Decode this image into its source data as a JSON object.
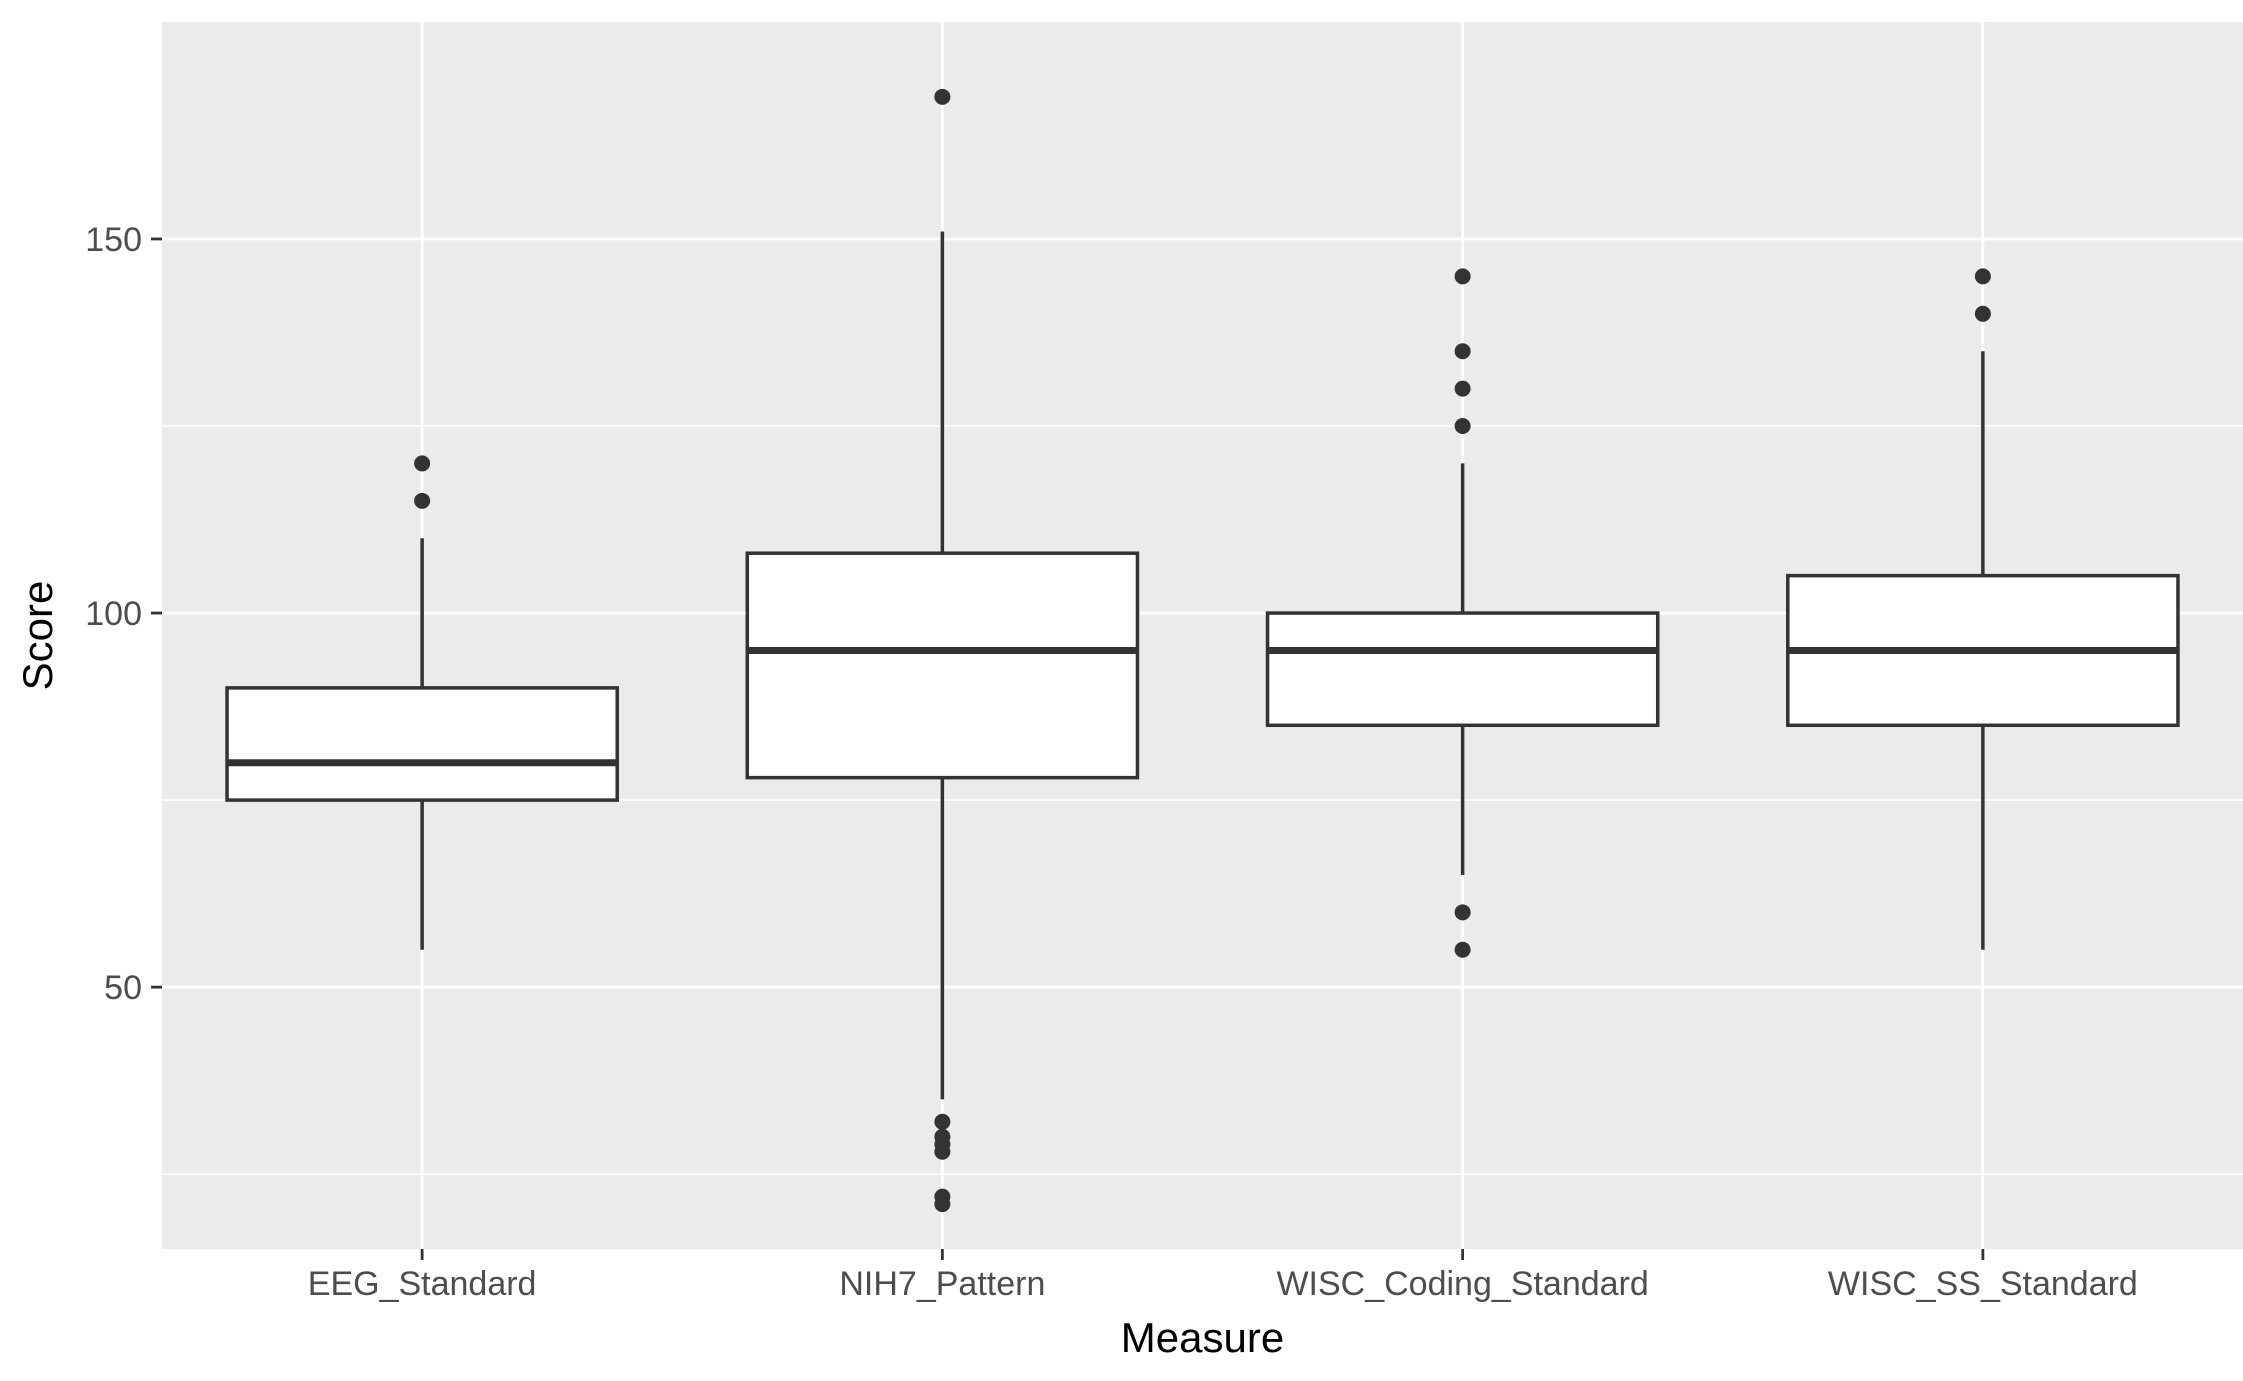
{
  "chart_data": {
    "type": "boxplot",
    "title": "",
    "xlabel": "Measure",
    "ylabel": "Score",
    "ylim": [
      15,
      179
    ],
    "y_ticks": [
      50,
      100,
      150
    ],
    "y_minor_ticks": [
      25,
      75,
      125
    ],
    "grid": true,
    "categories": [
      "EEG_Standard",
      "NIH7_Pattern",
      "WISC_Coding_Standard",
      "WISC_SS_Standard"
    ],
    "boxes": [
      {
        "category": "EEG_Standard",
        "whisker_low": 55,
        "q1": 75,
        "median": 80,
        "q3": 90,
        "whisker_high": 110,
        "outliers": [
          115,
          120
        ]
      },
      {
        "category": "NIH7_Pattern",
        "whisker_low": 35,
        "q1": 78,
        "median": 95,
        "q3": 108,
        "whisker_high": 151,
        "outliers": [
          169,
          32,
          30,
          29,
          28,
          22,
          21
        ]
      },
      {
        "category": "WISC_Coding_Standard",
        "whisker_low": 65,
        "q1": 85,
        "median": 95,
        "q3": 100,
        "whisker_high": 120,
        "outliers": [
          145,
          135,
          130,
          125,
          60,
          55
        ]
      },
      {
        "category": "WISC_SS_Standard",
        "whisker_low": 55,
        "q1": 85,
        "median": 95,
        "q3": 105,
        "whisker_high": 135,
        "outliers": [
          145,
          140
        ]
      }
    ],
    "colors": {
      "panel": "#ebebeb",
      "grid": "#ffffff",
      "box_fill": "#ffffff",
      "stroke": "#333333",
      "tick": "#333333"
    }
  }
}
